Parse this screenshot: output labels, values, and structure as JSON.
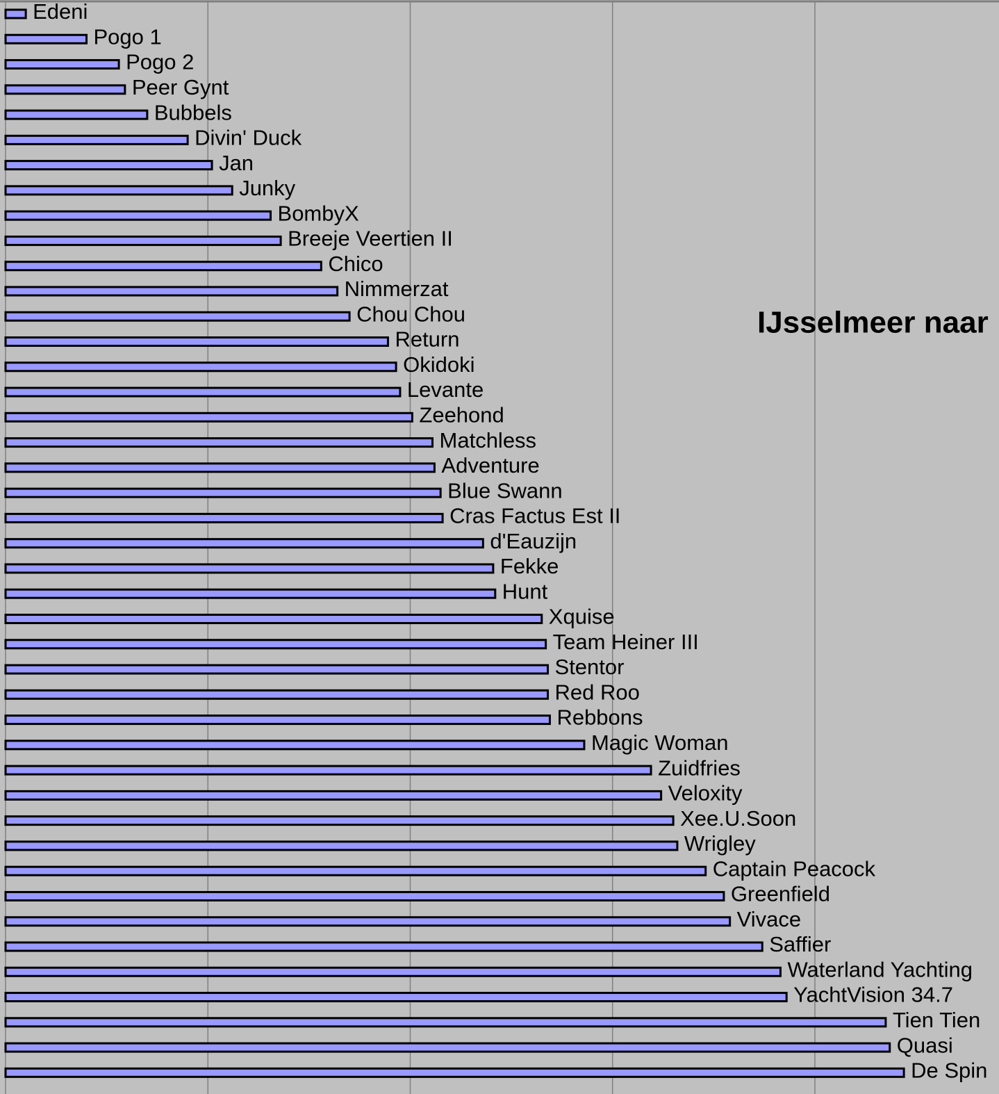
{
  "chart_data": {
    "type": "bar",
    "orientation": "horizontal",
    "title": "IJsselmeer naar",
    "categories": [
      "Edeni",
      "Pogo 1",
      "Pogo 2",
      "Peer Gynt",
      "Bubbels",
      "Divin' Duck",
      "Jan",
      "Junky",
      "BombyX",
      "Breeje Veertien II",
      "Chico",
      "Nimmerzat",
      "Chou Chou",
      "Return",
      "Okidoki",
      "Levante",
      "Zeehond",
      "Matchless",
      "Adventure",
      "Blue Swann",
      "Cras Factus Est II",
      "d'Eauzijn",
      "Fekke",
      "Hunt",
      "Xquise",
      "Team Heiner III",
      "Stentor",
      "Red Roo",
      "Rebbons",
      "Magic Woman",
      "Zuidfries",
      "Veloxity",
      "Xee.U.Soon",
      "Wrigley",
      "Captain Peacock",
      "Greenfield",
      "Vivace",
      "Saffier",
      "Waterland Yachting",
      "YachtVision 34.7",
      "Tien Tien",
      "Quasi",
      "De Spin"
    ],
    "values": [
      0.1,
      0.4,
      0.56,
      0.59,
      0.7,
      0.9,
      1.02,
      1.12,
      1.31,
      1.36,
      1.56,
      1.64,
      1.7,
      1.89,
      1.93,
      1.95,
      2.01,
      2.11,
      2.12,
      2.15,
      2.16,
      2.36,
      2.41,
      2.42,
      2.65,
      2.67,
      2.68,
      2.68,
      2.69,
      2.86,
      3.19,
      3.24,
      3.3,
      3.32,
      3.46,
      3.55,
      3.58,
      3.74,
      3.83,
      3.86,
      4.35,
      4.37,
      4.44
    ],
    "color": "#9999ff",
    "xlim": [
      0,
      4.91
    ],
    "xticks": [
      0,
      1,
      2,
      3,
      4
    ],
    "grid": true
  }
}
